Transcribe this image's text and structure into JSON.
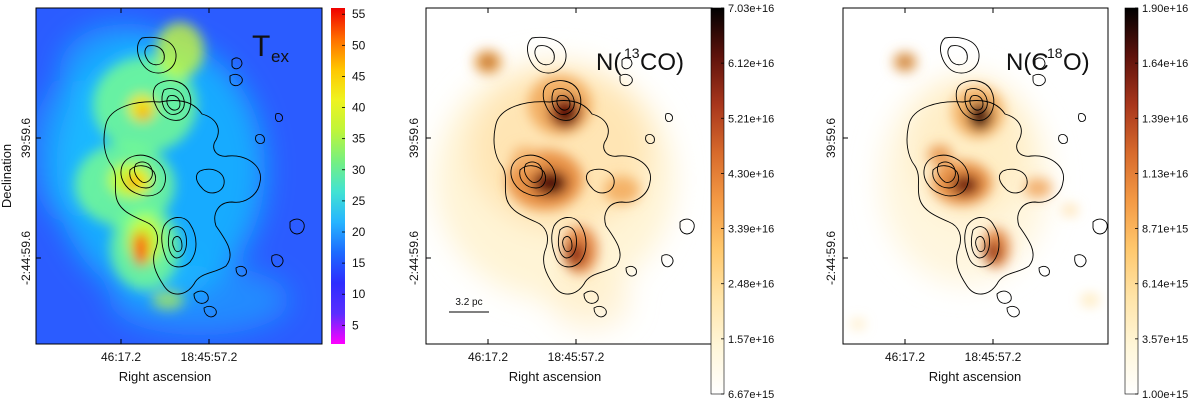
{
  "chart_data": [
    {
      "type": "heatmap",
      "title": "T",
      "title_subscript": "ex",
      "xlabel": "Right ascension",
      "ylabel": "Declination",
      "xticks": [
        "46:17.2",
        "18:45:57.2"
      ],
      "yticks": [
        "39:59.6",
        "-2:44:59.6"
      ],
      "colorbar": {
        "min": 2,
        "max": 56,
        "ticks": [
          "55",
          "50",
          "45",
          "40",
          "35",
          "30",
          "25",
          "20",
          "15",
          "10",
          "5"
        ],
        "colors": [
          "#ff00ff",
          "#5a2eff",
          "#2d2dff",
          "#1d6bff",
          "#27b5ff",
          "#42e3d2",
          "#77f07f",
          "#bff53a",
          "#eff31f",
          "#ffc600",
          "#ff6d00",
          "#ef0000"
        ]
      },
      "emission": {
        "background": "#2b5cff",
        "cloud_color": "#16c6ff",
        "clumps": [
          {
            "color": "#ff0000",
            "opacity": 0.95
          },
          {
            "color": "#ff4e00",
            "opacity": 0.95
          },
          {
            "color": "#ffe300",
            "opacity": 0.9
          },
          {
            "color": "#d4ff2b",
            "opacity": 0.8
          },
          {
            "color": "#7bff8c",
            "opacity": 0.75
          }
        ]
      }
    },
    {
      "type": "heatmap",
      "title": "N(",
      "title_sup": "13",
      "title_post": "CO)",
      "xlabel": "Right ascension",
      "ylabel": "",
      "xticks": [
        "46:17.2",
        "18:45:57.2"
      ],
      "yticks": [
        "39:59.6",
        "-2:44:59.6"
      ],
      "scale_label": "3.2 pc",
      "colorbar": {
        "min": 6670000000000000.0,
        "max": 7.03e+16,
        "ticks": [
          "7.03e+16",
          "6.12e+16",
          "5.21e+16",
          "4.30e+16",
          "3.39e+16",
          "2.48e+16",
          "1.57e+16",
          "6.67e+15"
        ],
        "colors": [
          "#ffffff",
          "#fff6d8",
          "#ffe4a8",
          "#ffc86d",
          "#f49a45",
          "#d76a2c",
          "#a8361c",
          "#5e120c",
          "#000000"
        ]
      }
    },
    {
      "type": "heatmap",
      "title": "N(C",
      "title_sup": "18",
      "title_post": "O)",
      "xlabel": "Right ascension",
      "ylabel": "",
      "xticks": [
        "46:17.2",
        "18:45:57.2"
      ],
      "yticks": [
        "39:59.6",
        "-2:44:59.6"
      ],
      "colorbar": {
        "min": 1000000000000000.0,
        "max": 1.9e+16,
        "ticks": [
          "1.90e+16",
          "1.64e+16",
          "1.39e+16",
          "1.13e+16",
          "8.71e+15",
          "6.14e+15",
          "3.57e+15",
          "1.00e+15"
        ],
        "colors": [
          "#ffffff",
          "#fff6d8",
          "#ffe4a8",
          "#ffc86d",
          "#f49a45",
          "#d76a2c",
          "#a8361c",
          "#5e120c",
          "#000000"
        ]
      }
    }
  ]
}
